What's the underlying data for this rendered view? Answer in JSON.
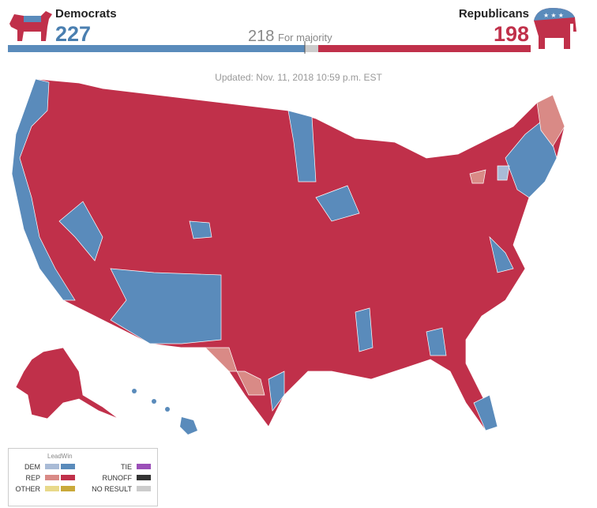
{
  "header": {
    "dem": {
      "label": "Democrats",
      "seats": 227
    },
    "rep": {
      "label": "Republicans",
      "seats": 198
    },
    "majority": {
      "value": 218,
      "label": "For majority"
    }
  },
  "updated": "Updated: Nov. 11, 2018 10:59 p.m. EST",
  "legend": {
    "lead": "Lead",
    "win": "Win",
    "items": [
      "DEM",
      "REP",
      "OTHER",
      "TIE",
      "RUNOFF",
      "NO RESULT"
    ]
  }
}
